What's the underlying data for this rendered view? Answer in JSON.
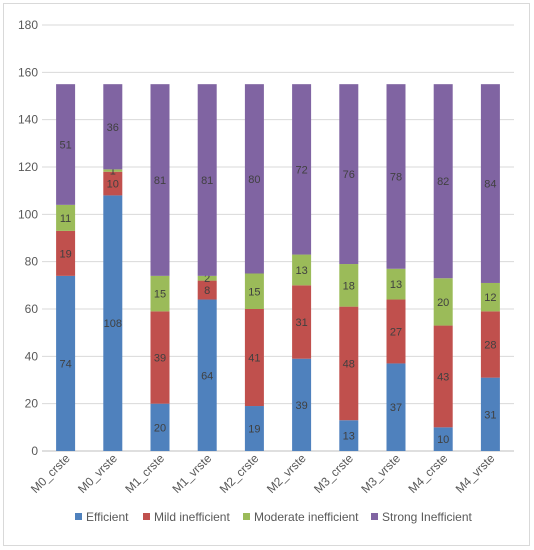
{
  "chart_data": {
    "type": "bar",
    "stacked": true,
    "categories": [
      "M0_crste",
      "M0_vrste",
      "M1_crste",
      "M1_vrste",
      "M2_crste",
      "M2_vrste",
      "M3_crste",
      "M3_vrste",
      "M4_crste",
      "M4_vrste"
    ],
    "series": [
      {
        "name": "Efficient",
        "color": "#4f81bd",
        "values": [
          74,
          108,
          20,
          64,
          19,
          39,
          13,
          37,
          10,
          31
        ]
      },
      {
        "name": "Mild inefficient",
        "color": "#c0504d",
        "values": [
          19,
          10,
          39,
          8,
          41,
          31,
          48,
          27,
          43,
          28
        ]
      },
      {
        "name": "Moderate inefficient",
        "color": "#9bbb59",
        "values": [
          11,
          1,
          15,
          2,
          15,
          13,
          18,
          13,
          20,
          12
        ]
      },
      {
        "name": "Strong Inefficient",
        "color": "#8064a2",
        "values": [
          51,
          36,
          81,
          81,
          80,
          72,
          76,
          78,
          82,
          84
        ]
      }
    ],
    "ylim": [
      0,
      180
    ],
    "yticks": [
      0,
      20,
      40,
      60,
      80,
      100,
      120,
      140,
      160,
      180
    ],
    "grid": true,
    "legend_position": "bottom"
  }
}
